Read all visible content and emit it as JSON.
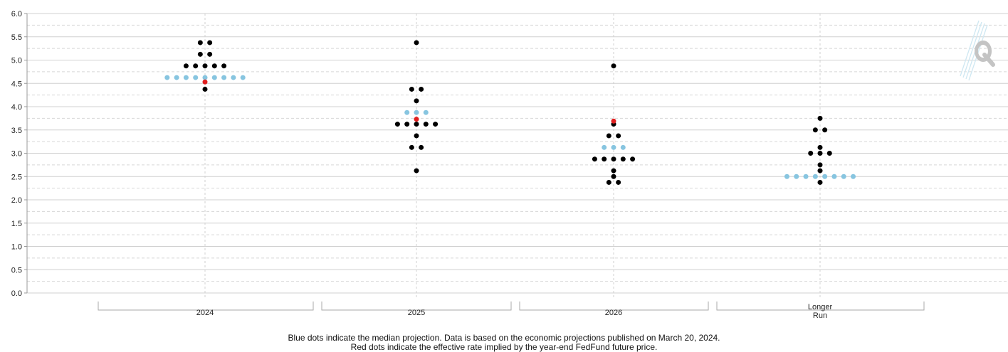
{
  "chart_data": {
    "type": "scatter",
    "title": "",
    "xlabel": "",
    "ylabel": "",
    "ylim": [
      0,
      6
    ],
    "y_ticks": [
      "0.0",
      "0.5",
      "1.0",
      "1.5",
      "2.0",
      "2.5",
      "3.0",
      "3.5",
      "4.0",
      "4.5",
      "5.0",
      "5.5",
      "6.0"
    ],
    "categories": [
      {
        "label": "2024",
        "label_lines": [
          "2024"
        ]
      },
      {
        "label": "2025",
        "label_lines": [
          "2025"
        ]
      },
      {
        "label": "2026",
        "label_lines": [
          "2026"
        ]
      },
      {
        "label": "Longer Run",
        "label_lines": [
          "Longer",
          "Run"
        ]
      }
    ],
    "grid": true,
    "colors": {
      "projection": "#000000",
      "median": "#87c5e0",
      "futures": "#e02020",
      "grid": "#d0d0d0"
    },
    "series": [
      {
        "role": "participant projections",
        "color": "#000000",
        "points": [
          {
            "category": "2024",
            "y": 5.375,
            "count": 2
          },
          {
            "category": "2024",
            "y": 5.125,
            "count": 2
          },
          {
            "category": "2024",
            "y": 4.875,
            "count": 5
          },
          {
            "category": "2024",
            "y": 4.625,
            "count": 9
          },
          {
            "category": "2024",
            "y": 4.375,
            "count": 1
          },
          {
            "category": "2025",
            "y": 5.375,
            "count": 1
          },
          {
            "category": "2025",
            "y": 4.375,
            "count": 2
          },
          {
            "category": "2025",
            "y": 4.125,
            "count": 1
          },
          {
            "category": "2025",
            "y": 3.875,
            "count": 3
          },
          {
            "category": "2025",
            "y": 3.625,
            "count": 5
          },
          {
            "category": "2025",
            "y": 3.375,
            "count": 1
          },
          {
            "category": "2025",
            "y": 3.125,
            "count": 2
          },
          {
            "category": "2025",
            "y": 2.625,
            "count": 1
          },
          {
            "category": "2026",
            "y": 4.875,
            "count": 1
          },
          {
            "category": "2026",
            "y": 3.625,
            "count": 1
          },
          {
            "category": "2026",
            "y": 3.375,
            "count": 2
          },
          {
            "category": "2026",
            "y": 3.125,
            "count": 3
          },
          {
            "category": "2026",
            "y": 2.875,
            "count": 5
          },
          {
            "category": "2026",
            "y": 2.625,
            "count": 1
          },
          {
            "category": "2026",
            "y": 2.5,
            "count": 1
          },
          {
            "category": "2026",
            "y": 2.375,
            "count": 2
          },
          {
            "category": "Longer Run",
            "y": 3.75,
            "count": 1
          },
          {
            "category": "Longer Run",
            "y": 3.5,
            "count": 2
          },
          {
            "category": "Longer Run",
            "y": 3.125,
            "count": 1
          },
          {
            "category": "Longer Run",
            "y": 3.0,
            "count": 3
          },
          {
            "category": "Longer Run",
            "y": 2.75,
            "count": 1
          },
          {
            "category": "Longer Run",
            "y": 2.625,
            "count": 1
          },
          {
            "category": "Longer Run",
            "y": 2.5,
            "count": 8
          },
          {
            "category": "Longer Run",
            "y": 2.375,
            "count": 1
          }
        ]
      },
      {
        "role": "median projection",
        "color": "#87c5e0",
        "points": [
          {
            "category": "2024",
            "y": 4.625
          },
          {
            "category": "2025",
            "y": 3.875
          },
          {
            "category": "2026",
            "y": 3.125
          },
          {
            "category": "Longer Run",
            "y": 2.5
          }
        ]
      },
      {
        "role": "fed funds futures implied rate",
        "color": "#e02020",
        "points": [
          {
            "category": "2024",
            "y": 4.53
          },
          {
            "category": "2025",
            "y": 3.73
          },
          {
            "category": "2026",
            "y": 3.69
          }
        ]
      }
    ],
    "notes": [
      "Blue dots indicate the median projection. Data is based on the economic projections published on March 20, 2024.",
      "Red dots indicate the effective rate implied by the year-end FedFund future price."
    ]
  }
}
